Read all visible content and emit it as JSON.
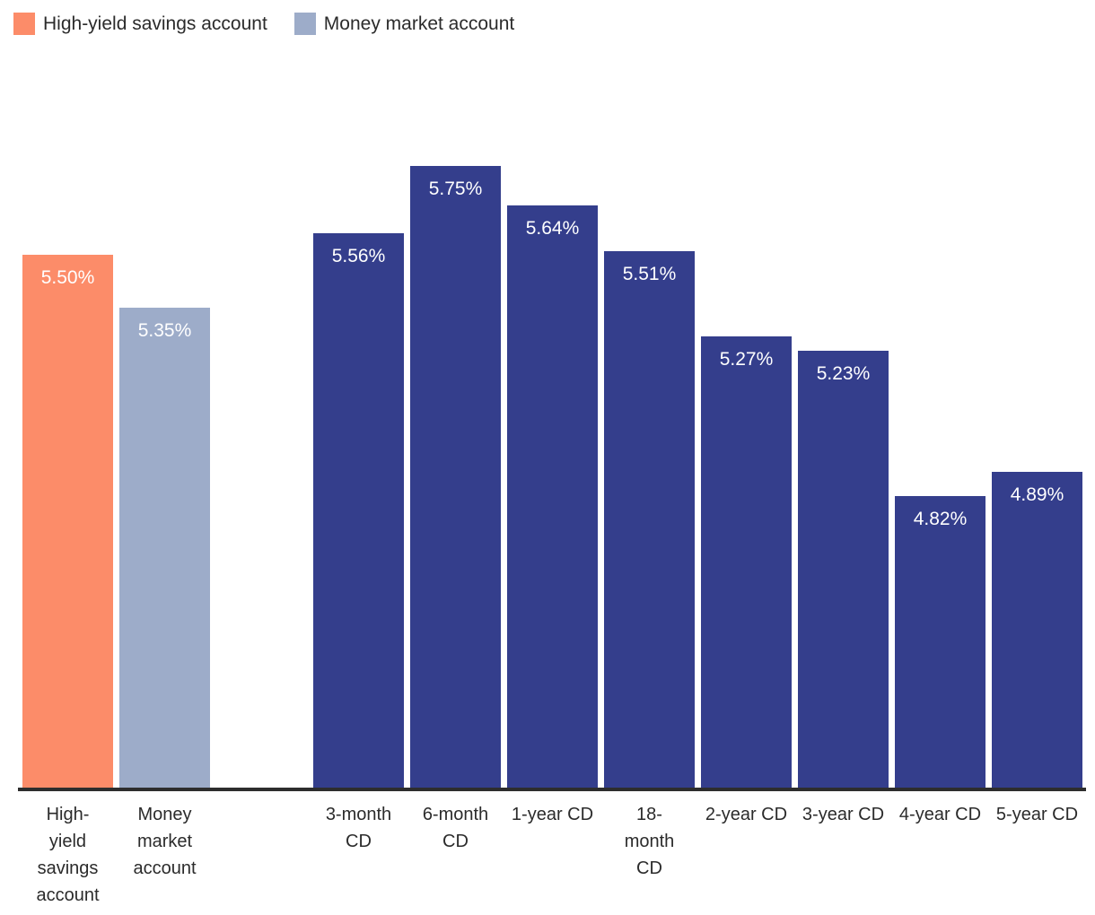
{
  "legend": {
    "items": [
      {
        "label": "High-yield savings account",
        "series": "high_yield_savings",
        "color": "#FC8C69"
      },
      {
        "label": "Money market account",
        "series": "money_market",
        "color": "#9DACC9"
      }
    ]
  },
  "chart_data": {
    "type": "bar",
    "title": "",
    "xlabel": "",
    "ylabel": "",
    "unit": "%",
    "legend_position": "top-left",
    "grid": false,
    "y_axis": {
      "min": 4.0,
      "max": 5.75,
      "visible": false
    },
    "series_colors": {
      "high_yield_savings": "#FC8C69",
      "money_market": "#9DACC9",
      "cd": "#343E8C"
    },
    "axis_line_color": "#2d2d2d",
    "text_color": "#2b2b2b",
    "value_label_color": "#ffffff",
    "categories": [
      "High-yield savings account",
      "Money market account",
      "3-month CD",
      "6-month CD",
      "1-year CD",
      "18-month CD",
      "2-year CD",
      "3-year CD",
      "4-year CD",
      "5-year CD"
    ],
    "values": [
      5.5,
      5.35,
      5.56,
      5.75,
      5.64,
      5.51,
      5.27,
      5.23,
      4.82,
      4.89
    ],
    "bars": [
      {
        "category": "High-yield savings account",
        "label_lines": "High-\nyield\nsavings\naccount",
        "value": 5.5,
        "display": "5.50%",
        "series": "high_yield_savings",
        "group_gap_after": false
      },
      {
        "category": "Money market account",
        "label_lines": "Money\nmarket\naccount",
        "value": 5.35,
        "display": "5.35%",
        "series": "money_market",
        "group_gap_after": true
      },
      {
        "category": "3-month CD",
        "label_lines": "3-month\nCD",
        "value": 5.56,
        "display": "5.56%",
        "series": "cd",
        "group_gap_after": false
      },
      {
        "category": "6-month CD",
        "label_lines": "6-month\nCD",
        "value": 5.75,
        "display": "5.75%",
        "series": "cd",
        "group_gap_after": false
      },
      {
        "category": "1-year CD",
        "label_lines": "1-year CD",
        "value": 5.64,
        "display": "5.64%",
        "series": "cd",
        "group_gap_after": false
      },
      {
        "category": "18-month CD",
        "label_lines": "18-\nmonth\nCD",
        "value": 5.51,
        "display": "5.51%",
        "series": "cd",
        "group_gap_after": false
      },
      {
        "category": "2-year CD",
        "label_lines": "2-year CD",
        "value": 5.27,
        "display": "5.27%",
        "series": "cd",
        "group_gap_after": false
      },
      {
        "category": "3-year CD",
        "label_lines": "3-year CD",
        "value": 5.23,
        "display": "5.23%",
        "series": "cd",
        "group_gap_after": false
      },
      {
        "category": "4-year CD",
        "label_lines": "4-year CD",
        "value": 4.82,
        "display": "4.82%",
        "series": "cd",
        "group_gap_after": false
      },
      {
        "category": "5-year CD",
        "label_lines": "5-year CD",
        "value": 4.89,
        "display": "4.89%",
        "series": "cd",
        "group_gap_after": false
      }
    ]
  }
}
